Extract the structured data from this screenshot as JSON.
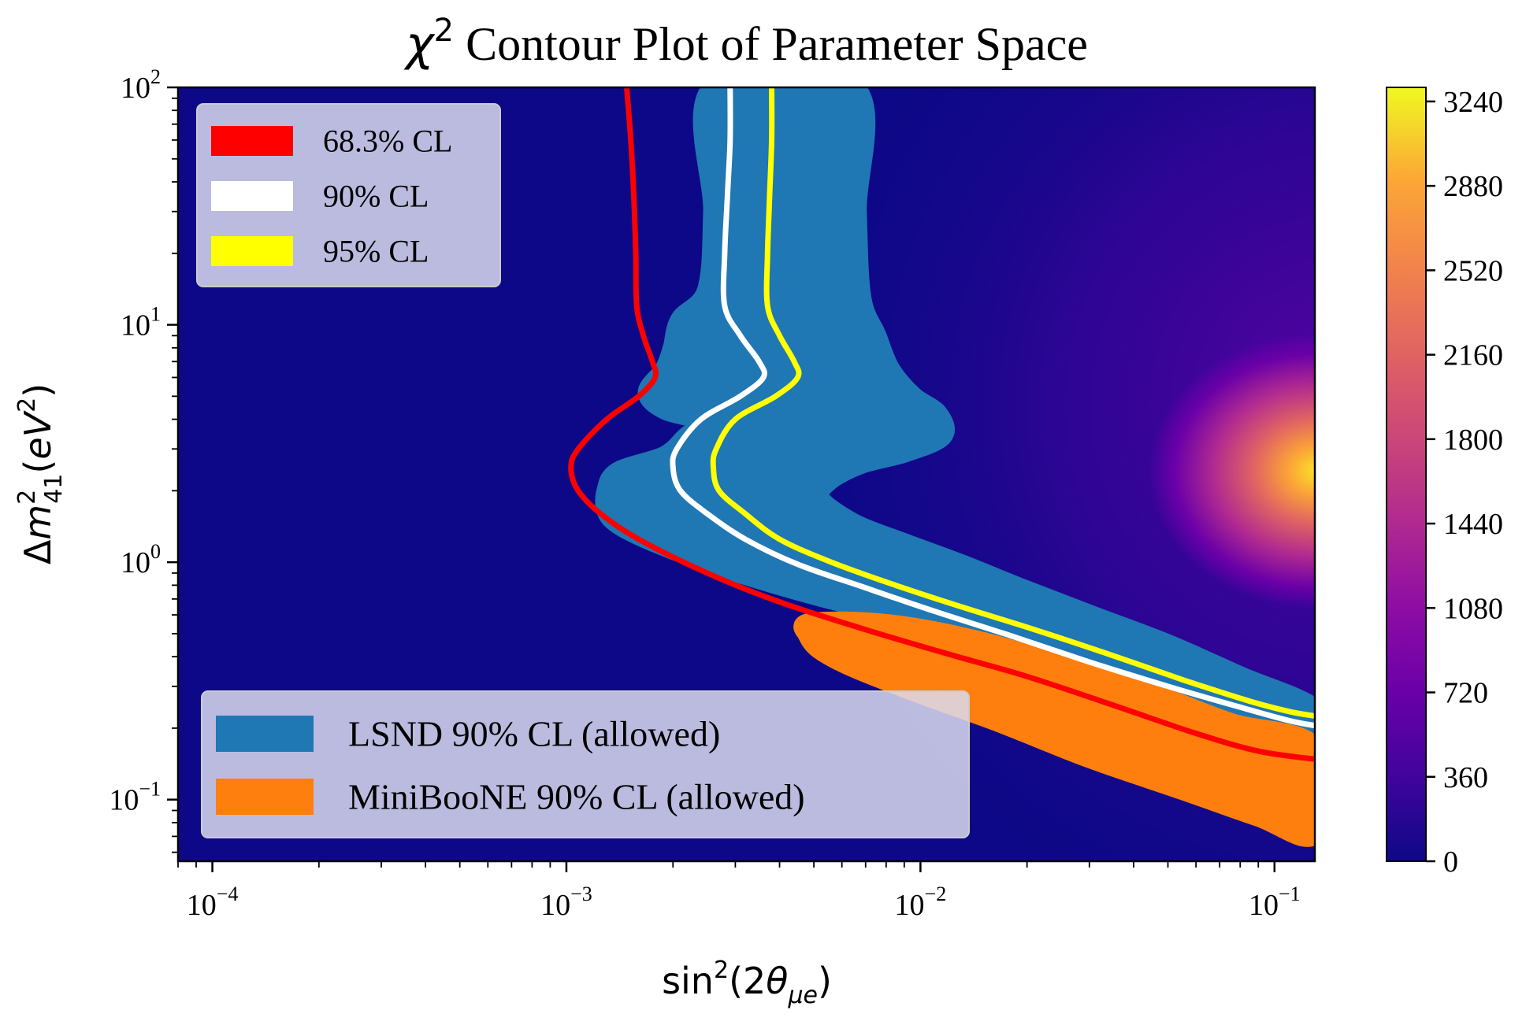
{
  "chart_data": {
    "type": "heatmap",
    "title": "χ² Contour Plot of Parameter Space",
    "title_parts": {
      "chi": "χ",
      "sup": "2",
      "rest": " Contour Plot of Parameter Space"
    },
    "xlabel": "sin²(2θμe)",
    "ylabel": "Δm²41(eV²)",
    "x_scale": "log",
    "y_scale": "log",
    "xlim": [
      8e-05,
      0.13
    ],
    "ylim": [
      0.055,
      100
    ],
    "x_ticks": [
      {
        "value": 0.0001,
        "base": "10",
        "exp": "−4"
      },
      {
        "value": 0.001,
        "base": "10",
        "exp": "−3"
      },
      {
        "value": 0.01,
        "base": "10",
        "exp": "−2"
      },
      {
        "value": 0.1,
        "base": "10",
        "exp": "−1"
      }
    ],
    "y_ticks": [
      {
        "value": 0.1,
        "base": "10",
        "exp": "−1"
      },
      {
        "value": 1,
        "base": "10",
        "exp": "0"
      },
      {
        "value": 10,
        "base": "10",
        "exp": "1"
      },
      {
        "value": 100,
        "base": "10",
        "exp": "2"
      }
    ],
    "colormap": "plasma",
    "colorbar": {
      "range": [
        0,
        3300
      ],
      "ticks": [
        0,
        360,
        720,
        1080,
        1440,
        1800,
        2160,
        2520,
        2880,
        3240
      ],
      "tick_labels": [
        "0",
        "360",
        "720",
        "1080",
        "1440",
        "1800",
        "2160",
        "2520",
        "2880",
        "3240"
      ]
    },
    "heatmap_peak": {
      "x": 0.12,
      "y": 2.5,
      "value": 3300
    },
    "series": [
      {
        "name": "68.3% CL",
        "kind": "line",
        "color": "#ff0000",
        "points": [
          [
            0.00148,
            100
          ],
          [
            0.00152,
            60
          ],
          [
            0.00155,
            35
          ],
          [
            0.00157,
            20
          ],
          [
            0.00158,
            12
          ],
          [
            0.00165,
            9
          ],
          [
            0.00175,
            7
          ],
          [
            0.00178,
            6
          ],
          [
            0.0016,
            5
          ],
          [
            0.0013,
            4
          ],
          [
            0.00108,
            3
          ],
          [
            0.00103,
            2.5
          ],
          [
            0.00108,
            2
          ],
          [
            0.00125,
            1.6
          ],
          [
            0.0016,
            1.25
          ],
          [
            0.0025,
            0.9
          ],
          [
            0.004,
            0.68
          ],
          [
            0.007,
            0.52
          ],
          [
            0.012,
            0.41
          ],
          [
            0.02,
            0.33
          ],
          [
            0.035,
            0.25
          ],
          [
            0.06,
            0.19
          ],
          [
            0.09,
            0.16
          ],
          [
            0.13,
            0.148
          ]
        ]
      },
      {
        "name": "90% CL",
        "kind": "line",
        "color": "#ffffff",
        "points": [
          [
            0.0029,
            100
          ],
          [
            0.0029,
            60
          ],
          [
            0.00285,
            35
          ],
          [
            0.0028,
            20
          ],
          [
            0.0028,
            12
          ],
          [
            0.0031,
            9
          ],
          [
            0.0035,
            7
          ],
          [
            0.0036,
            6
          ],
          [
            0.0031,
            5
          ],
          [
            0.0024,
            4
          ],
          [
            0.00205,
            3
          ],
          [
            0.002,
            2.5
          ],
          [
            0.0021,
            2
          ],
          [
            0.0025,
            1.6
          ],
          [
            0.0032,
            1.25
          ],
          [
            0.0045,
            0.98
          ],
          [
            0.007,
            0.78
          ],
          [
            0.011,
            0.62
          ],
          [
            0.018,
            0.49
          ],
          [
            0.03,
            0.38
          ],
          [
            0.05,
            0.3
          ],
          [
            0.08,
            0.245
          ],
          [
            0.11,
            0.215
          ],
          [
            0.13,
            0.205
          ]
        ]
      },
      {
        "name": "95% CL",
        "kind": "line",
        "color": "#ffff00",
        "points": [
          [
            0.0038,
            100
          ],
          [
            0.0038,
            60
          ],
          [
            0.00375,
            35
          ],
          [
            0.0037,
            20
          ],
          [
            0.0037,
            12
          ],
          [
            0.004,
            9
          ],
          [
            0.0044,
            7
          ],
          [
            0.0045,
            6
          ],
          [
            0.0039,
            5
          ],
          [
            0.003,
            4
          ],
          [
            0.00265,
            3
          ],
          [
            0.0026,
            2.5
          ],
          [
            0.0027,
            2
          ],
          [
            0.0032,
            1.6
          ],
          [
            0.004,
            1.25
          ],
          [
            0.0056,
            1.0
          ],
          [
            0.0085,
            0.8
          ],
          [
            0.013,
            0.65
          ],
          [
            0.021,
            0.52
          ],
          [
            0.034,
            0.41
          ],
          [
            0.055,
            0.32
          ],
          [
            0.085,
            0.26
          ],
          [
            0.11,
            0.235
          ],
          [
            0.13,
            0.225
          ]
        ]
      },
      {
        "name": "LSND 90% CL (allowed)",
        "kind": "region",
        "color": "#1f77b4",
        "points": [
          [
            0.0026,
            100
          ],
          [
            0.0065,
            100
          ],
          [
            0.0066,
            30
          ],
          [
            0.0068,
            13
          ],
          [
            0.0075,
            9
          ],
          [
            0.0082,
            6.5
          ],
          [
            0.0095,
            5
          ],
          [
            0.0112,
            4.2
          ],
          [
            0.0115,
            3.4
          ],
          [
            0.009,
            2.9
          ],
          [
            0.0068,
            2.6
          ],
          [
            0.0055,
            2.2
          ],
          [
            0.0052,
            1.85
          ],
          [
            0.0065,
            1.45
          ],
          [
            0.009,
            1.2
          ],
          [
            0.013,
            0.98
          ],
          [
            0.019,
            0.78
          ],
          [
            0.03,
            0.6
          ],
          [
            0.05,
            0.45
          ],
          [
            0.08,
            0.33
          ],
          [
            0.13,
            0.24
          ],
          [
            0.13,
            0.17
          ],
          [
            0.08,
            0.22
          ],
          [
            0.05,
            0.28
          ],
          [
            0.03,
            0.36
          ],
          [
            0.018,
            0.46
          ],
          [
            0.01,
            0.58
          ],
          [
            0.006,
            0.68
          ],
          [
            0.0038,
            0.82
          ],
          [
            0.0025,
            1.0
          ],
          [
            0.0017,
            1.25
          ],
          [
            0.0014,
            1.45
          ],
          [
            0.0013,
            1.65
          ],
          [
            0.0013,
            2.0
          ],
          [
            0.0014,
            2.4
          ],
          [
            0.0019,
            2.8
          ],
          [
            0.0022,
            3.4
          ],
          [
            0.0025,
            3.9
          ],
          [
            0.0019,
            4.4
          ],
          [
            0.0017,
            5.2
          ],
          [
            0.0019,
            6.5
          ],
          [
            0.002,
            8.0
          ],
          [
            0.0021,
            10.5
          ],
          [
            0.0025,
            14
          ],
          [
            0.0026,
            30
          ]
        ]
      },
      {
        "name": "MiniBooNE 90% CL (allowed)",
        "kind": "region",
        "color": "#ff7f0e",
        "points": [
          [
            0.0048,
            0.55
          ],
          [
            0.0065,
            0.56
          ],
          [
            0.0095,
            0.53
          ],
          [
            0.015,
            0.46
          ],
          [
            0.025,
            0.37
          ],
          [
            0.045,
            0.28
          ],
          [
            0.075,
            0.21
          ],
          [
            0.13,
            0.165
          ],
          [
            0.13,
            0.072
          ],
          [
            0.09,
            0.085
          ],
          [
            0.055,
            0.11
          ],
          [
            0.03,
            0.15
          ],
          [
            0.017,
            0.21
          ],
          [
            0.01,
            0.28
          ],
          [
            0.0065,
            0.36
          ],
          [
            0.0052,
            0.43
          ],
          [
            0.0048,
            0.5
          ]
        ]
      }
    ],
    "legends": [
      {
        "position": "top-left",
        "entries": [
          "68.3% CL",
          "90% CL",
          "95% CL"
        ],
        "colors": [
          "#ff0000",
          "#ffffff",
          "#ffff00"
        ]
      },
      {
        "position": "bottom-left",
        "entries": [
          "LSND 90% CL (allowed)",
          "MiniBooNE 90% CL (allowed)"
        ],
        "colors": [
          "#1f77b4",
          "#ff7f0e"
        ]
      }
    ],
    "grid": false
  }
}
